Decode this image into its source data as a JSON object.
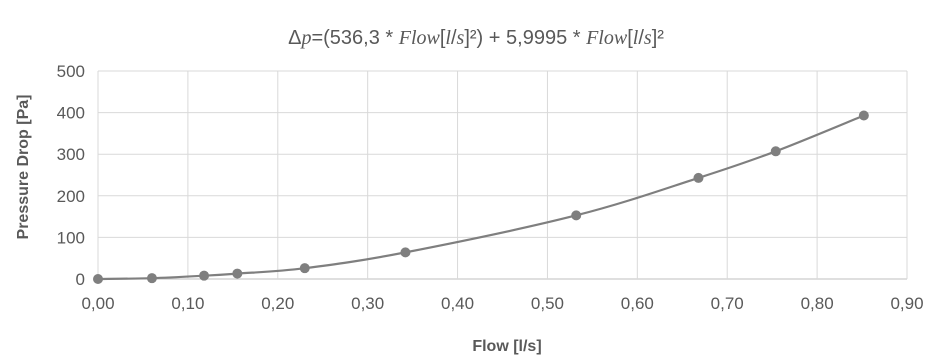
{
  "chart_data": {
    "type": "scatter",
    "title_parts": [
      {
        "text": "Δ",
        "italic": false
      },
      {
        "text": "p",
        "italic": true
      },
      {
        "text": "=(536,3 * ",
        "italic": false
      },
      {
        "text": "Flow",
        "italic": true
      },
      {
        "text": "[",
        "italic": false
      },
      {
        "text": "l",
        "italic": true
      },
      {
        "text": "/",
        "italic": false
      },
      {
        "text": "s",
        "italic": true
      },
      {
        "text": "]²) + 5,9995 * ",
        "italic": false
      },
      {
        "text": "Flow",
        "italic": true
      },
      {
        "text": "[",
        "italic": false
      },
      {
        "text": "l",
        "italic": true
      },
      {
        "text": "/",
        "italic": false
      },
      {
        "text": "s",
        "italic": true
      },
      {
        "text": "]²",
        "italic": false
      }
    ],
    "xlabel": "Flow [l/s]",
    "ylabel": "Pressure Drop [Pa]",
    "xlim": [
      0,
      0.9
    ],
    "ylim": [
      0,
      500
    ],
    "x_ticks": [
      "0,00",
      "0,10",
      "0,20",
      "0,30",
      "0,40",
      "0,50",
      "0,60",
      "0,70",
      "0,80",
      "0,90"
    ],
    "y_ticks": [
      "0",
      "100",
      "200",
      "300",
      "400",
      "500"
    ],
    "grid": true,
    "trendline": {
      "type": "polynomial",
      "a": 536.3,
      "b": 5.9995
    },
    "series": [
      {
        "x": [
          0.0,
          0.06,
          0.118,
          0.155,
          0.23,
          0.342,
          0.532,
          0.668,
          0.754,
          0.852
        ],
        "y": [
          0,
          2,
          8,
          13,
          26,
          64,
          153,
          243,
          307,
          393
        ]
      }
    ],
    "colors": {
      "series": "#7f7f7f",
      "grid": "#d9d9d9",
      "text": "#595959"
    }
  }
}
